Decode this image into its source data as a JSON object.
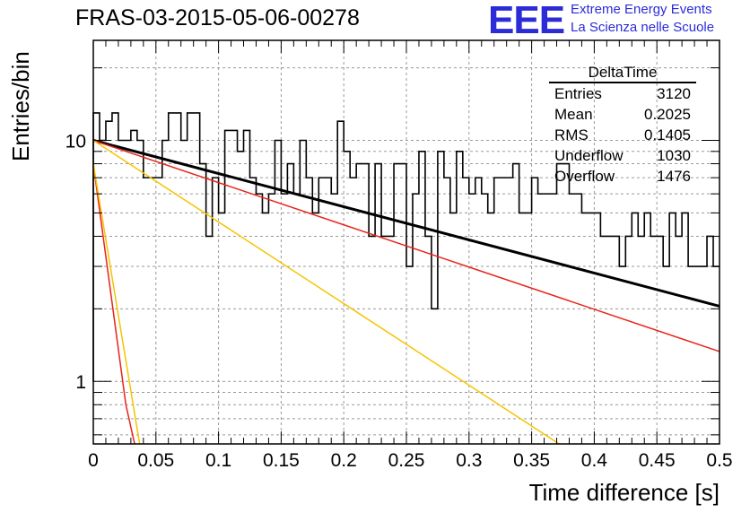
{
  "header": {
    "run_title": "FRAS-03-2015-05-06-00278",
    "logo_text": "EEE",
    "logo_line1": "Extreme Energy Events",
    "logo_line2": "La Scienza nelle Scuole",
    "logo_color": "#2b2bd9"
  },
  "stats_box": {
    "title": "DeltaTime",
    "rows": [
      {
        "label": "Entries",
        "value": "3120"
      },
      {
        "label": "Mean",
        "value": "0.2025"
      },
      {
        "label": "RMS",
        "value": "0.1405"
      },
      {
        "label": "Underflow",
        "value": "1030"
      },
      {
        "label": "Overflow",
        "value": "1476"
      }
    ]
  },
  "chart_data": {
    "type": "line",
    "xlabel": "Time difference [s]",
    "ylabel": "Entries/bin",
    "xlim": [
      0,
      0.5
    ],
    "ylim": [
      0.55,
      26
    ],
    "yscale": "log",
    "grid": true,
    "x_ticks": [
      "0",
      "0.05",
      "0.1",
      "0.15",
      "0.2",
      "0.25",
      "0.3",
      "0.35",
      "0.4",
      "0.45",
      "0.5"
    ],
    "y_ticks": [
      "1",
      "10"
    ],
    "histogram": {
      "bin_width": 0.005,
      "line_color": "#000000",
      "counts": [
        13,
        10,
        12,
        13,
        10,
        10,
        11,
        10,
        7,
        7,
        7,
        10,
        13,
        13,
        10,
        13,
        13,
        8,
        4,
        7,
        5,
        11,
        11,
        9,
        11,
        7,
        6,
        5,
        6,
        10,
        6,
        8,
        6,
        10,
        7,
        5,
        7,
        7,
        6,
        12,
        9,
        7,
        8,
        8,
        4,
        8,
        4,
        4,
        8,
        8,
        3,
        6,
        9,
        4,
        2,
        9,
        7,
        5,
        9,
        7,
        6,
        7,
        6,
        5,
        7,
        7,
        7,
        8,
        5,
        5,
        7,
        6,
        6,
        6,
        8,
        8,
        6,
        6,
        5,
        5,
        5,
        4,
        4,
        4,
        3,
        4,
        5,
        4,
        5,
        4,
        4,
        3,
        5,
        4,
        5,
        3,
        3,
        3,
        4,
        3
      ],
      "zero_bins_drawn_to": 1
    },
    "fits": [
      {
        "color": "#000000",
        "x": [
          0,
          0.5
        ],
        "y": [
          10,
          2.05
        ],
        "width": 3
      },
      {
        "color": "#e8231a",
        "x": [
          0,
          0.5
        ],
        "y": [
          10,
          1.33
        ],
        "width": 1.5
      },
      {
        "color": "#f5c400",
        "x": [
          0,
          0.372
        ],
        "y": [
          10,
          0.55
        ],
        "width": 1.5
      },
      {
        "color": "#e8231a",
        "x": [
          0,
          0.026,
          0.033
        ],
        "y": [
          8,
          0.8,
          0.55
        ],
        "width": 1.5
      },
      {
        "color": "#f5c400",
        "x": [
          0,
          0.037
        ],
        "y": [
          8,
          0.55
        ],
        "width": 1.5
      }
    ]
  }
}
